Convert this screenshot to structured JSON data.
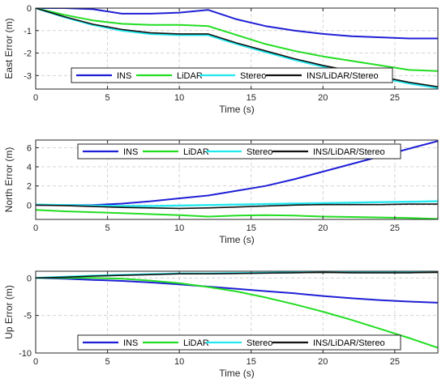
{
  "colors": {
    "ins": "#1f1fd6",
    "lidar": "#22dd22",
    "stereo": "#22e8f0",
    "fusion": "#111111"
  },
  "chart_data": [
    {
      "type": "line",
      "xlabel": "Time (s)",
      "ylabel": "East Error (m)",
      "xlim": [
        0,
        28
      ],
      "ylim": [
        -3.6,
        0
      ],
      "xticks": [
        0,
        5,
        10,
        15,
        20,
        25
      ],
      "yticks": [
        0,
        -1,
        -2,
        -3
      ],
      "grid": true,
      "legend": "bottom, horizontal",
      "series": [
        {
          "name": "INS",
          "x": [
            0,
            2,
            4,
            6,
            8,
            10,
            12,
            14,
            16,
            18,
            20,
            22,
            24,
            26,
            28
          ],
          "y": [
            0,
            0,
            -0.05,
            -0.25,
            -0.25,
            -0.2,
            -0.08,
            -0.5,
            -0.8,
            -1.0,
            -1.15,
            -1.25,
            -1.3,
            -1.35,
            -1.35
          ]
        },
        {
          "name": "LiDAR",
          "x": [
            0,
            2,
            4,
            6,
            8,
            10,
            12,
            14,
            16,
            18,
            20,
            22,
            24,
            26,
            28
          ],
          "y": [
            0,
            -0.3,
            -0.55,
            -0.7,
            -0.75,
            -0.75,
            -0.8,
            -1.2,
            -1.6,
            -1.9,
            -2.15,
            -2.35,
            -2.55,
            -2.75,
            -2.8
          ]
        },
        {
          "name": "Stereo",
          "x": [
            0,
            2,
            4,
            6,
            8,
            10,
            12,
            14,
            16,
            18,
            20,
            22,
            24,
            26,
            28
          ],
          "y": [
            0,
            -0.4,
            -0.75,
            -1.0,
            -1.15,
            -1.2,
            -1.2,
            -1.6,
            -1.95,
            -2.3,
            -2.6,
            -2.85,
            -3.1,
            -3.35,
            -3.55
          ]
        },
        {
          "name": "INS/LiDAR/Stereo",
          "x": [
            0,
            2,
            4,
            6,
            8,
            10,
            12,
            14,
            16,
            18,
            20,
            22,
            24,
            26,
            28
          ],
          "y": [
            0,
            -0.38,
            -0.72,
            -0.95,
            -1.1,
            -1.15,
            -1.15,
            -1.55,
            -1.9,
            -2.25,
            -2.55,
            -2.8,
            -3.05,
            -3.3,
            -3.5
          ]
        }
      ]
    },
    {
      "type": "line",
      "xlabel": "Time (s)",
      "ylabel": "North Error (m)",
      "xlim": [
        0,
        28
      ],
      "ylim": [
        -1.5,
        6.8
      ],
      "xticks": [
        0,
        5,
        10,
        15,
        20,
        25
      ],
      "yticks": [
        6,
        4,
        2,
        0
      ],
      "grid": true,
      "legend": "top, horizontal",
      "series": [
        {
          "name": "INS",
          "x": [
            0,
            2,
            4,
            6,
            8,
            10,
            12,
            14,
            16,
            18,
            20,
            22,
            24,
            26,
            28
          ],
          "y": [
            0,
            0,
            0,
            0.15,
            0.4,
            0.7,
            1.0,
            1.5,
            2.0,
            2.7,
            3.5,
            4.3,
            5.1,
            5.9,
            6.7
          ]
        },
        {
          "name": "LiDAR",
          "x": [
            0,
            2,
            4,
            6,
            8,
            10,
            12,
            14,
            16,
            18,
            20,
            22,
            24,
            26,
            28
          ],
          "y": [
            -0.5,
            -0.65,
            -0.75,
            -0.85,
            -0.95,
            -1.05,
            -1.2,
            -1.1,
            -1.05,
            -1.1,
            -1.2,
            -1.25,
            -1.3,
            -1.35,
            -1.45
          ]
        },
        {
          "name": "Stereo",
          "x": [
            0,
            2,
            4,
            6,
            8,
            10,
            12,
            14,
            16,
            18,
            20,
            22,
            24,
            26,
            28
          ],
          "y": [
            0.05,
            0,
            -0.05,
            -0.1,
            -0.1,
            -0.05,
            0,
            0.05,
            0.1,
            0.15,
            0.2,
            0.25,
            0.3,
            0.35,
            0.4
          ]
        },
        {
          "name": "INS/LiDAR/Stereo",
          "x": [
            0,
            2,
            4,
            6,
            8,
            10,
            12,
            14,
            16,
            18,
            20,
            22,
            24,
            26,
            28
          ],
          "y": [
            0,
            -0.05,
            -0.15,
            -0.25,
            -0.3,
            -0.35,
            -0.3,
            -0.2,
            -0.1,
            0,
            0.05,
            0.05,
            0.05,
            0.1,
            0.1
          ]
        }
      ]
    },
    {
      "type": "line",
      "xlabel": "Time (s)",
      "ylabel": "Up Error (m)",
      "xlim": [
        0,
        28
      ],
      "ylim": [
        -10,
        0.9
      ],
      "xticks": [
        0,
        5,
        10,
        15,
        20,
        25
      ],
      "yticks": [
        0,
        -5,
        -10
      ],
      "grid": true,
      "legend": "bottom, horizontal",
      "series": [
        {
          "name": "INS",
          "x": [
            0,
            2,
            4,
            6,
            8,
            10,
            12,
            14,
            16,
            18,
            20,
            22,
            24,
            26,
            28
          ],
          "y": [
            0,
            -0.1,
            -0.25,
            -0.4,
            -0.6,
            -0.85,
            -1.15,
            -1.45,
            -1.75,
            -2.05,
            -2.4,
            -2.7,
            -2.95,
            -3.15,
            -3.3
          ]
        },
        {
          "name": "LiDAR",
          "x": [
            0,
            2,
            4,
            6,
            8,
            10,
            12,
            14,
            16,
            18,
            20,
            22,
            24,
            26,
            28
          ],
          "y": [
            0,
            0,
            0,
            -0.1,
            -0.35,
            -0.7,
            -1.2,
            -1.8,
            -2.6,
            -3.5,
            -4.5,
            -5.6,
            -6.8,
            -8.0,
            -9.3
          ]
        },
        {
          "name": "Stereo",
          "x": [
            0,
            2,
            4,
            6,
            8,
            10,
            12,
            14,
            16,
            18,
            20,
            22,
            24,
            26,
            28
          ],
          "y": [
            0,
            0.15,
            0.3,
            0.4,
            0.5,
            0.6,
            0.6,
            0.65,
            0.7,
            0.75,
            0.8,
            0.75,
            0.75,
            0.75,
            0.8
          ]
        },
        {
          "name": "INS/LiDAR/Stereo",
          "x": [
            0,
            2,
            4,
            6,
            8,
            10,
            12,
            14,
            16,
            18,
            20,
            22,
            24,
            26,
            28
          ],
          "y": [
            0,
            0.1,
            0.25,
            0.35,
            0.45,
            0.55,
            0.55,
            0.6,
            0.65,
            0.7,
            0.75,
            0.7,
            0.7,
            0.7,
            0.75
          ]
        }
      ]
    }
  ]
}
